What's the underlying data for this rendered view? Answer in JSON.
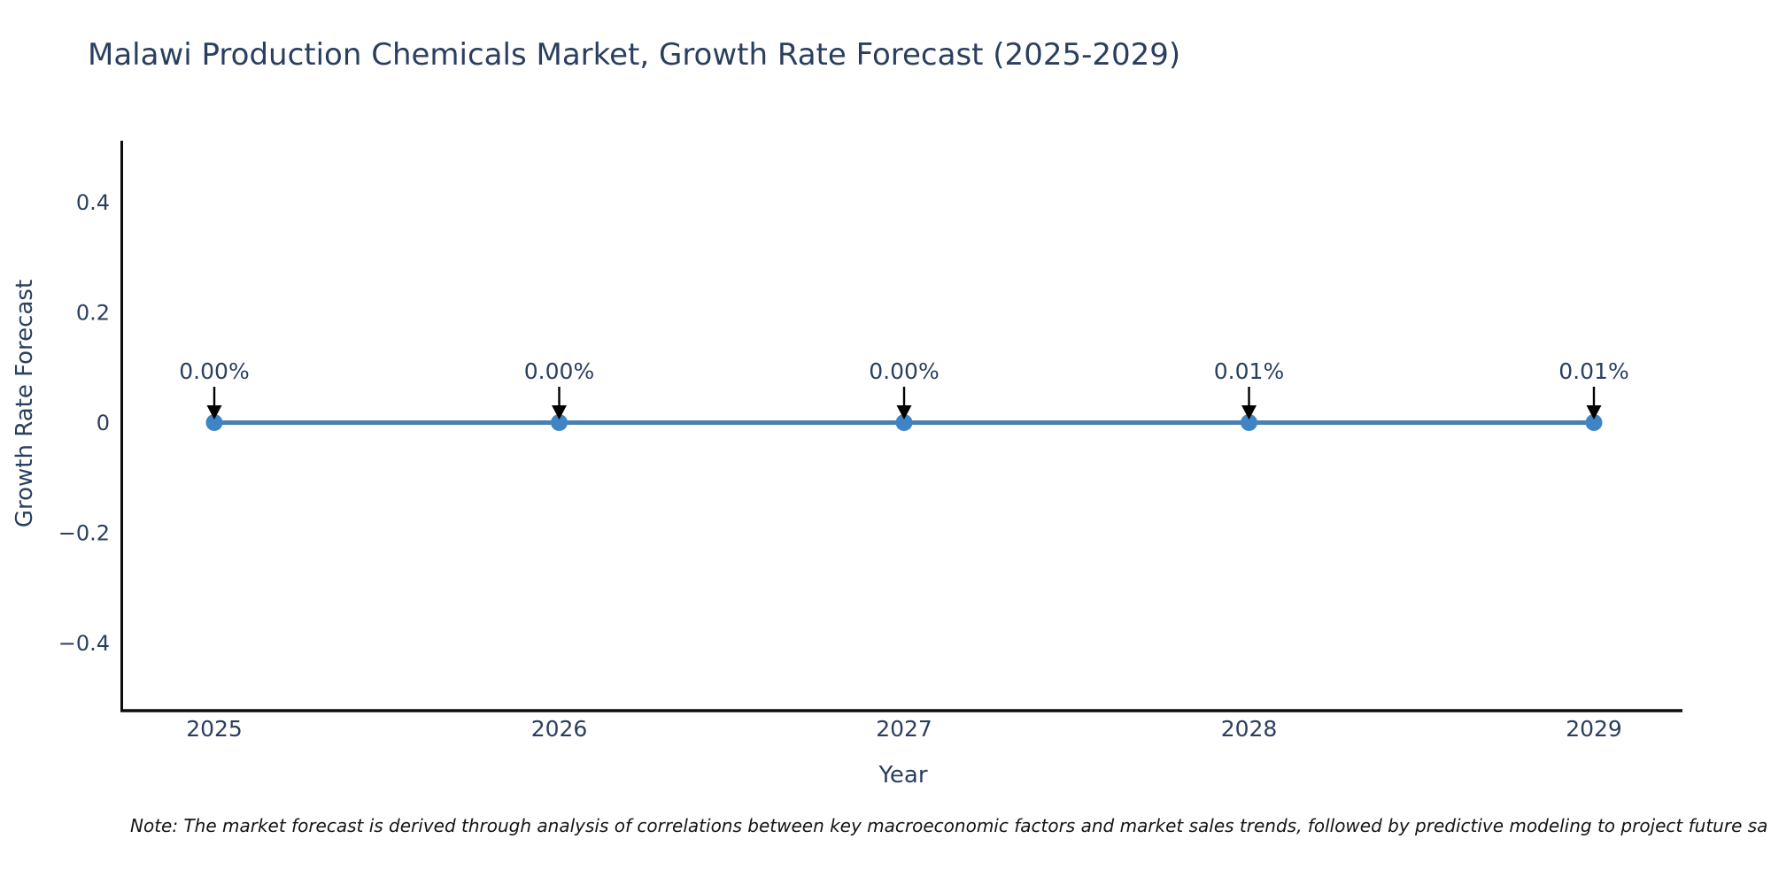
{
  "title": "Malawi Production Chemicals Market, Growth Rate Forecast (2025-2029)",
  "note": "Note: The market forecast is derived through analysis of correlations between key macroeconomic factors and market sales trends, followed by predictive modeling to project future sa",
  "chart_data": {
    "type": "line",
    "title": "Malawi Production Chemicals Market, Growth Rate Forecast (2025-2029)",
    "xlabel": "Year",
    "ylabel": "Growth Rate Forecast",
    "categories": [
      "2025",
      "2026",
      "2027",
      "2028",
      "2029"
    ],
    "x": [
      2025,
      2026,
      2027,
      2028,
      2029
    ],
    "values": [
      0.0,
      0.0,
      0.0,
      0.0001,
      0.0001
    ],
    "point_labels": [
      "0.00%",
      "0.00%",
      "0.00%",
      "0.01%",
      "0.01%"
    ],
    "yticks": [
      0.4,
      0.2,
      0,
      -0.2,
      -0.4
    ],
    "ylim": [
      -0.52,
      0.51
    ],
    "grid": false,
    "legend": false,
    "annotation_style": "down-arrow",
    "colors": {
      "line": "#4a80af",
      "marker": "#3f84c4",
      "arrow": "#000000",
      "axis": "#0d0d0d",
      "tick_text": "#2a3f5f",
      "annotation_text": "#2a3f5f",
      "title_text": "#2a3f5f",
      "note_text": "#141414",
      "background": "#ffffff"
    }
  }
}
